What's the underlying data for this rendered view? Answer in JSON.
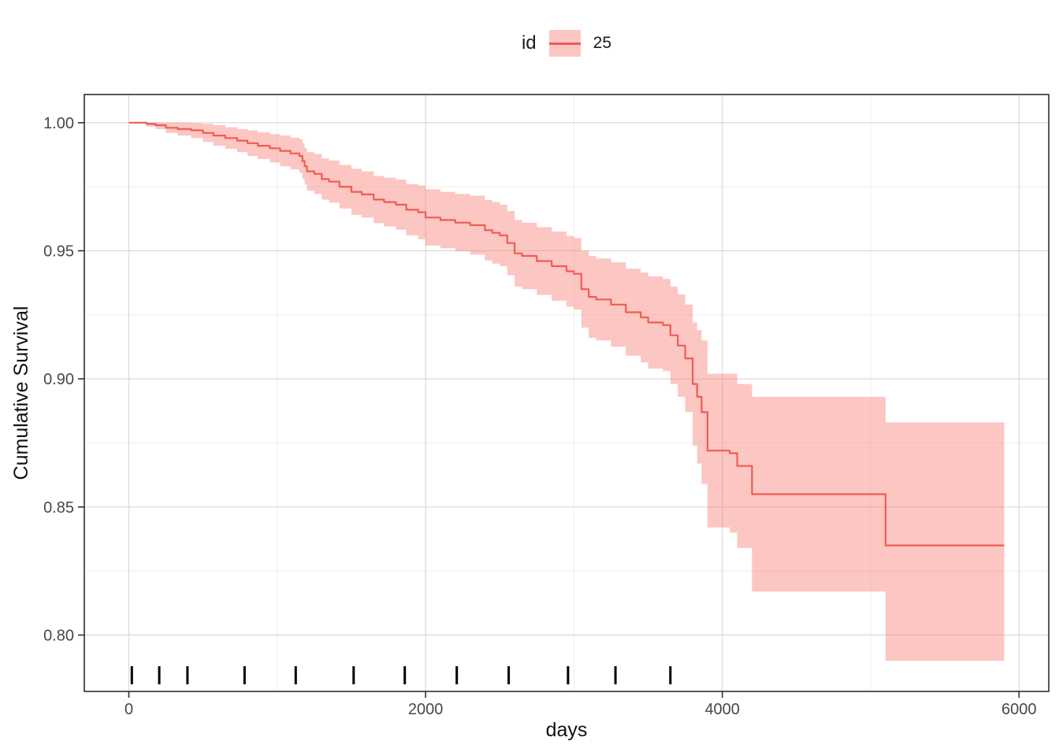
{
  "legend": {
    "title": "id",
    "entries": [
      {
        "label": "25",
        "color": "#F8766D"
      }
    ],
    "position": "top"
  },
  "colors": {
    "line": "#EE5C55",
    "ribbon": "#F8766D",
    "legend_key_bg": "#FBC7C3",
    "grid_major": "#D9D9D9",
    "grid_minor": "#EFEFEF",
    "panel_border": "#2F2F2F",
    "tick": "#333333",
    "tick_text": "#474747",
    "rug": "#000000",
    "panel_bg": "#FFFFFF"
  },
  "chart_data": {
    "type": "line",
    "subtype": "kaplan_meier_step_curve_with_ci_ribbon",
    "title": "",
    "xlabel": "days",
    "ylabel": "Cumulative Survival",
    "grid": true,
    "legend_position": "top",
    "xlim": [
      -300,
      6200
    ],
    "ylim": [
      0.778,
      1.011
    ],
    "x_ticks": {
      "values": [
        0,
        2000,
        4000,
        6000
      ],
      "labels": [
        "0",
        "2000",
        "4000",
        "6000"
      ]
    },
    "x_minor": [
      1000,
      3000,
      5000
    ],
    "y_ticks": {
      "values": [
        1.0,
        0.95,
        0.9,
        0.85,
        0.8
      ],
      "labels": [
        "1.00",
        "0.95",
        "0.90",
        "0.85",
        "0.80"
      ]
    },
    "y_minor": [
      0.975,
      0.925,
      0.875,
      0.825
    ],
    "rug_x": [
      20,
      205,
      395,
      780,
      1125,
      1515,
      1860,
      2210,
      2560,
      2960,
      3280,
      3650
    ],
    "series": [
      {
        "name": "25",
        "line_color": "#EE5C55",
        "ribbon_color": "#F8766D",
        "ribbon_opacity": 0.42,
        "columns": [
          "days",
          "survival",
          "ci_lower",
          "ci_upper"
        ],
        "steps": [
          [
            0,
            1.0,
            1.0,
            1.0
          ],
          [
            120,
            0.9995,
            0.9985,
            1.0
          ],
          [
            180,
            0.999,
            0.9975,
            1.0
          ],
          [
            250,
            0.998,
            0.996,
            1.0
          ],
          [
            330,
            0.9975,
            0.995,
            1.0
          ],
          [
            420,
            0.997,
            0.994,
            0.9998
          ],
          [
            500,
            0.996,
            0.9925,
            0.9995
          ],
          [
            570,
            0.995,
            0.991,
            0.999
          ],
          [
            650,
            0.994,
            0.9898,
            0.9982
          ],
          [
            730,
            0.993,
            0.9885,
            0.9975
          ],
          [
            800,
            0.992,
            0.987,
            0.997
          ],
          [
            870,
            0.991,
            0.9858,
            0.9962
          ],
          [
            950,
            0.99,
            0.9845,
            0.9955
          ],
          [
            1020,
            0.989,
            0.983,
            0.995
          ],
          [
            1090,
            0.988,
            0.9818,
            0.9942
          ],
          [
            1150,
            0.987,
            0.9805,
            0.9935
          ],
          [
            1170,
            0.985,
            0.978,
            0.992
          ],
          [
            1185,
            0.983,
            0.9758,
            0.9902
          ],
          [
            1200,
            0.981,
            0.9735,
            0.9885
          ],
          [
            1250,
            0.98,
            0.9722,
            0.9878
          ],
          [
            1300,
            0.978,
            0.97,
            0.986
          ],
          [
            1350,
            0.977,
            0.9688,
            0.9852
          ],
          [
            1420,
            0.975,
            0.9665,
            0.9835
          ],
          [
            1500,
            0.973,
            0.964,
            0.982
          ],
          [
            1570,
            0.972,
            0.963,
            0.981
          ],
          [
            1650,
            0.97,
            0.9608,
            0.9792
          ],
          [
            1720,
            0.969,
            0.9595,
            0.9785
          ],
          [
            1800,
            0.968,
            0.9582,
            0.9778
          ],
          [
            1870,
            0.966,
            0.956,
            0.976
          ],
          [
            1950,
            0.965,
            0.9545,
            0.9755
          ],
          [
            2000,
            0.963,
            0.952,
            0.974
          ],
          [
            2100,
            0.962,
            0.951,
            0.973
          ],
          [
            2200,
            0.961,
            0.9498,
            0.9722
          ],
          [
            2300,
            0.96,
            0.9485,
            0.9715
          ],
          [
            2400,
            0.958,
            0.9462,
            0.9698
          ],
          [
            2450,
            0.957,
            0.945,
            0.969
          ],
          [
            2500,
            0.956,
            0.944,
            0.968
          ],
          [
            2550,
            0.953,
            0.9405,
            0.9655
          ],
          [
            2600,
            0.949,
            0.936,
            0.962
          ],
          [
            2650,
            0.948,
            0.935,
            0.961
          ],
          [
            2750,
            0.946,
            0.9328,
            0.9592
          ],
          [
            2850,
            0.944,
            0.9305,
            0.9575
          ],
          [
            2950,
            0.942,
            0.9282,
            0.9558
          ],
          [
            3000,
            0.941,
            0.927,
            0.955
          ],
          [
            3050,
            0.935,
            0.92,
            0.95
          ],
          [
            3100,
            0.932,
            0.916,
            0.948
          ],
          [
            3150,
            0.931,
            0.915,
            0.947
          ],
          [
            3250,
            0.929,
            0.9125,
            0.9455
          ],
          [
            3350,
            0.926,
            0.909,
            0.943
          ],
          [
            3450,
            0.924,
            0.9065,
            0.9415
          ],
          [
            3500,
            0.922,
            0.904,
            0.94
          ],
          [
            3600,
            0.921,
            0.903,
            0.939
          ],
          [
            3650,
            0.917,
            0.898,
            0.936
          ],
          [
            3700,
            0.913,
            0.893,
            0.933
          ],
          [
            3750,
            0.908,
            0.887,
            0.929
          ],
          [
            3800,
            0.898,
            0.874,
            0.922
          ],
          [
            3830,
            0.893,
            0.867,
            0.919
          ],
          [
            3860,
            0.887,
            0.859,
            0.915
          ],
          [
            3900,
            0.872,
            0.842,
            0.902
          ],
          [
            4050,
            0.871,
            0.84,
            0.902
          ],
          [
            4100,
            0.866,
            0.834,
            0.898
          ],
          [
            4200,
            0.855,
            0.817,
            0.893
          ],
          [
            5100,
            0.835,
            0.79,
            0.883
          ],
          [
            5900,
            0.835,
            0.79,
            0.883
          ]
        ]
      }
    ]
  }
}
